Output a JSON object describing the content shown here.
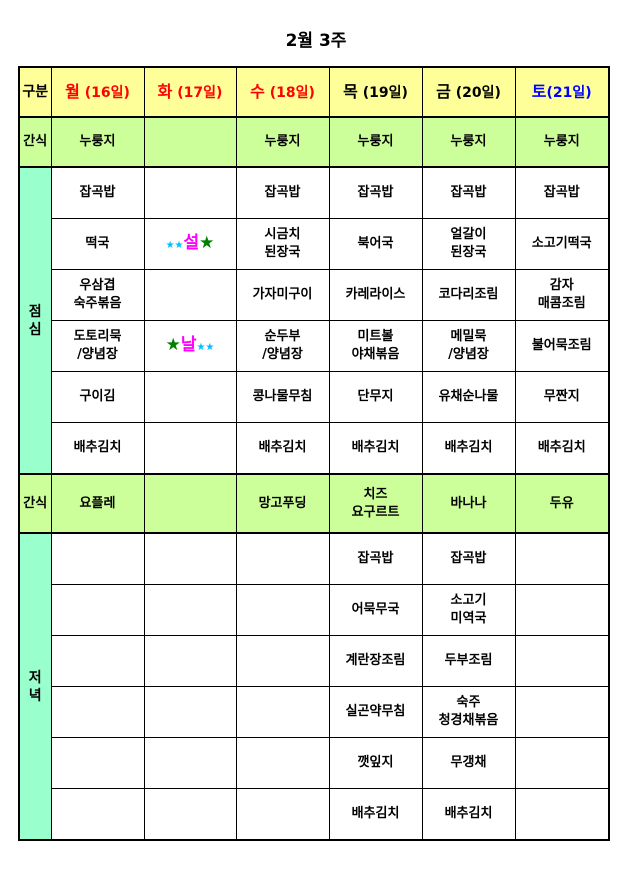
{
  "title": "2월 3주",
  "header": {
    "label": "구분",
    "days": [
      {
        "day": "월",
        "date": "(16일)",
        "color": "#ff0000"
      },
      {
        "day": "화",
        "date": "(17일)",
        "color": "#ff0000"
      },
      {
        "day": "수",
        "date": "(18일)",
        "color": "#ff0000"
      },
      {
        "day": "목",
        "date": "(19일)",
        "color": "#000000"
      },
      {
        "day": "금",
        "date": "(20일)",
        "color": "#000000"
      },
      {
        "day": "토",
        "date": "(21일)",
        "color": "#0000ff"
      }
    ]
  },
  "holiday": {
    "top": "설",
    "bottom": "날"
  },
  "snack1": {
    "label": "간식",
    "items": [
      "누룽지",
      "",
      "누룽지",
      "누룽지",
      "누룽지",
      "누룽지"
    ]
  },
  "lunch": {
    "label": "점심",
    "rows": [
      [
        "잡곡밥",
        "",
        "잡곡밥",
        "잡곡밥",
        "잡곡밥",
        "잡곡밥"
      ],
      [
        "떡국",
        "",
        "시금치\n된장국",
        "북어국",
        "얼갈이\n된장국",
        "소고기떡국"
      ],
      [
        "우삼겹\n숙주볶음",
        "",
        "가자미구이",
        "카레라이스",
        "코다리조림",
        "감자\n매콤조림"
      ],
      [
        "도토리묵\n/양념장",
        "",
        "순두부\n/양념장",
        "미트볼\n야채볶음",
        "메밀묵\n/양념장",
        "불어묵조림"
      ],
      [
        "구이김",
        "",
        "콩나물무침",
        "단무지",
        "유채순나물",
        "무짠지"
      ],
      [
        "배추김치",
        "",
        "배추김치",
        "배추김치",
        "배추김치",
        "배추김치"
      ]
    ]
  },
  "snack2": {
    "label": "간식",
    "items": [
      "요플레",
      "",
      "망고푸딩",
      "치즈\n요구르트",
      "바나나",
      "두유"
    ]
  },
  "dinner": {
    "label": "저녁",
    "rows": [
      [
        "",
        "",
        "",
        "잡곡밥",
        "잡곡밥",
        ""
      ],
      [
        "",
        "",
        "",
        "어묵무국",
        "소고기\n미역국",
        ""
      ],
      [
        "",
        "",
        "",
        "계란장조림",
        "두부조림",
        ""
      ],
      [
        "",
        "",
        "",
        "실곤약무침",
        "숙주\n청경채볶음",
        ""
      ],
      [
        "",
        "",
        "",
        "깻잎지",
        "무갱채",
        ""
      ],
      [
        "",
        "",
        "",
        "배추김치",
        "배추김치",
        ""
      ]
    ]
  }
}
